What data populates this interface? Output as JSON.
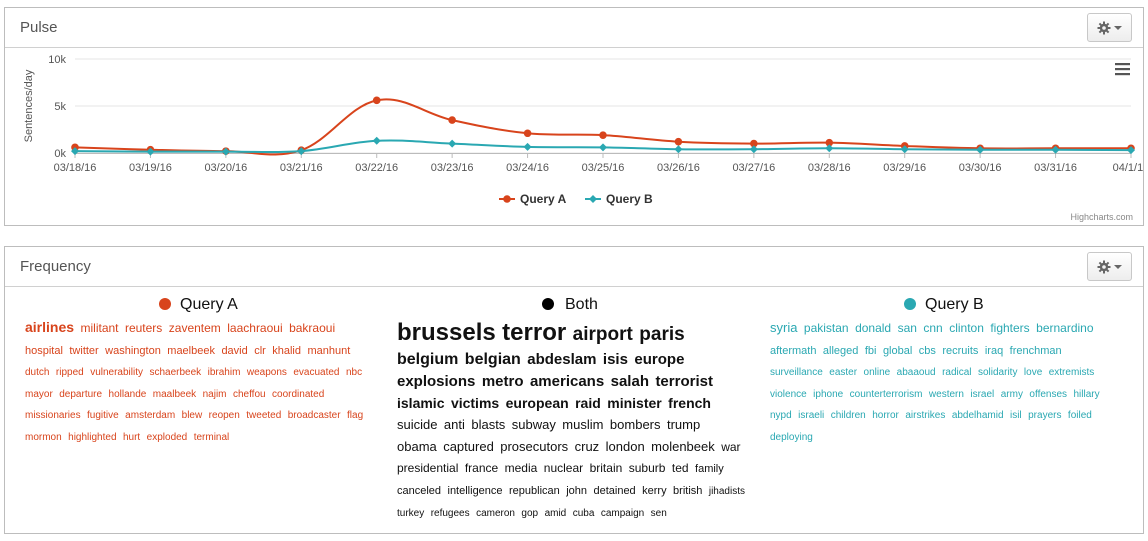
{
  "pulse": {
    "title": "Pulse",
    "credit": "Highcharts.com"
  },
  "frequency": {
    "title": "Frequency",
    "columns": [
      {
        "name": "Query A",
        "color": "#d8441c"
      },
      {
        "name": "Both",
        "color": "#000000"
      },
      {
        "name": "Query B",
        "color": "#2aa8b2"
      }
    ],
    "clouds": {
      "query_a": [
        {
          "t": "airlines",
          "s": 14
        },
        {
          "t": "militant",
          "s": 12
        },
        {
          "t": "reuters",
          "s": 12
        },
        {
          "t": "zaventem",
          "s": 12
        },
        {
          "t": "laachraoui",
          "s": 12
        },
        {
          "t": "bakraoui",
          "s": 12
        },
        {
          "t": "hospital",
          "s": 11
        },
        {
          "t": "twitter",
          "s": 11
        },
        {
          "t": "washington",
          "s": 11
        },
        {
          "t": "maelbeek",
          "s": 11
        },
        {
          "t": "david",
          "s": 11
        },
        {
          "t": "clr",
          "s": 11
        },
        {
          "t": "khalid",
          "s": 11
        },
        {
          "t": "manhunt",
          "s": 11
        },
        {
          "t": "dutch",
          "s": 10
        },
        {
          "t": "ripped",
          "s": 10
        },
        {
          "t": "vulnerability",
          "s": 10
        },
        {
          "t": "schaerbeek",
          "s": 10
        },
        {
          "t": "ibrahim",
          "s": 10
        },
        {
          "t": "weapons",
          "s": 10
        },
        {
          "t": "evacuated",
          "s": 10
        },
        {
          "t": "nbc",
          "s": 10
        },
        {
          "t": "mayor",
          "s": 10
        },
        {
          "t": "departure",
          "s": 10
        },
        {
          "t": "hollande",
          "s": 10
        },
        {
          "t": "maalbeek",
          "s": 10
        },
        {
          "t": "najim",
          "s": 10
        },
        {
          "t": "cheffou",
          "s": 10
        },
        {
          "t": "coordinated",
          "s": 10
        },
        {
          "t": "missionaries",
          "s": 10
        },
        {
          "t": "fugitive",
          "s": 10
        },
        {
          "t": "amsterdam",
          "s": 10
        },
        {
          "t": "blew",
          "s": 10
        },
        {
          "t": "reopen",
          "s": 10
        },
        {
          "t": "tweeted",
          "s": 10
        },
        {
          "t": "broadcaster",
          "s": 10
        },
        {
          "t": "flag",
          "s": 10
        },
        {
          "t": "mormon",
          "s": 10
        },
        {
          "t": "highlighted",
          "s": 10
        },
        {
          "t": "hurt",
          "s": 10
        },
        {
          "t": "exploded",
          "s": 10
        },
        {
          "t": "terminal",
          "s": 10
        }
      ],
      "both": [
        {
          "t": "brussels",
          "s": 24
        },
        {
          "t": "terror",
          "s": 24
        },
        {
          "t": "airport",
          "s": 19
        },
        {
          "t": "paris",
          "s": 19
        },
        {
          "t": "belgium",
          "s": 16
        },
        {
          "t": "belgian",
          "s": 16
        },
        {
          "t": "abdeslam",
          "s": 15
        },
        {
          "t": "isis",
          "s": 15
        },
        {
          "t": "europe",
          "s": 15
        },
        {
          "t": "explosions",
          "s": 15
        },
        {
          "t": "metro",
          "s": 15
        },
        {
          "t": "americans",
          "s": 15
        },
        {
          "t": "salah",
          "s": 15
        },
        {
          "t": "terrorist",
          "s": 15
        },
        {
          "t": "islamic",
          "s": 14
        },
        {
          "t": "victims",
          "s": 14
        },
        {
          "t": "european",
          "s": 14
        },
        {
          "t": "raid",
          "s": 14
        },
        {
          "t": "minister",
          "s": 14
        },
        {
          "t": "french",
          "s": 14
        },
        {
          "t": "suicide",
          "s": 13
        },
        {
          "t": "anti",
          "s": 13
        },
        {
          "t": "blasts",
          "s": 13
        },
        {
          "t": "subway",
          "s": 13
        },
        {
          "t": "muslim",
          "s": 13
        },
        {
          "t": "bombers",
          "s": 13
        },
        {
          "t": "trump",
          "s": 13
        },
        {
          "t": "obama",
          "s": 13
        },
        {
          "t": "captured",
          "s": 13
        },
        {
          "t": "prosecutors",
          "s": 13
        },
        {
          "t": "cruz",
          "s": 13
        },
        {
          "t": "london",
          "s": 13
        },
        {
          "t": "molenbeek",
          "s": 13
        },
        {
          "t": "war",
          "s": 12
        },
        {
          "t": "presidential",
          "s": 12
        },
        {
          "t": "france",
          "s": 12
        },
        {
          "t": "media",
          "s": 12
        },
        {
          "t": "nuclear",
          "s": 12
        },
        {
          "t": "britain",
          "s": 12
        },
        {
          "t": "suburb",
          "s": 12
        },
        {
          "t": "ted",
          "s": 12
        },
        {
          "t": "family",
          "s": 11
        },
        {
          "t": "canceled",
          "s": 11
        },
        {
          "t": "intelligence",
          "s": 11
        },
        {
          "t": "republican",
          "s": 11
        },
        {
          "t": "john",
          "s": 11
        },
        {
          "t": "detained",
          "s": 11
        },
        {
          "t": "kerry",
          "s": 11
        },
        {
          "t": "british",
          "s": 11
        },
        {
          "t": "jihadists",
          "s": 10
        },
        {
          "t": "turkey",
          "s": 10
        },
        {
          "t": "refugees",
          "s": 10
        },
        {
          "t": "cameron",
          "s": 10
        },
        {
          "t": "gop",
          "s": 10
        },
        {
          "t": "amid",
          "s": 10
        },
        {
          "t": "cuba",
          "s": 10
        },
        {
          "t": "campaign",
          "s": 10
        },
        {
          "t": "sen",
          "s": 10
        }
      ],
      "query_b": [
        {
          "t": "syria",
          "s": 13
        },
        {
          "t": "pakistan",
          "s": 12
        },
        {
          "t": "donald",
          "s": 12
        },
        {
          "t": "san",
          "s": 12
        },
        {
          "t": "cnn",
          "s": 12
        },
        {
          "t": "clinton",
          "s": 12
        },
        {
          "t": "fighters",
          "s": 12
        },
        {
          "t": "bernardino",
          "s": 12
        },
        {
          "t": "aftermath",
          "s": 11
        },
        {
          "t": "alleged",
          "s": 11
        },
        {
          "t": "fbi",
          "s": 11
        },
        {
          "t": "global",
          "s": 11
        },
        {
          "t": "cbs",
          "s": 11
        },
        {
          "t": "recruits",
          "s": 11
        },
        {
          "t": "iraq",
          "s": 11
        },
        {
          "t": "frenchman",
          "s": 11
        },
        {
          "t": "surveillance",
          "s": 10
        },
        {
          "t": "easter",
          "s": 10
        },
        {
          "t": "online",
          "s": 10
        },
        {
          "t": "abaaoud",
          "s": 10
        },
        {
          "t": "radical",
          "s": 10
        },
        {
          "t": "solidarity",
          "s": 10
        },
        {
          "t": "love",
          "s": 10
        },
        {
          "t": "extremists",
          "s": 10
        },
        {
          "t": "violence",
          "s": 10
        },
        {
          "t": "iphone",
          "s": 10
        },
        {
          "t": "counterterrorism",
          "s": 10
        },
        {
          "t": "western",
          "s": 10
        },
        {
          "t": "israel",
          "s": 10
        },
        {
          "t": "army",
          "s": 10
        },
        {
          "t": "offenses",
          "s": 10
        },
        {
          "t": "hillary",
          "s": 10
        },
        {
          "t": "nypd",
          "s": 10
        },
        {
          "t": "israeli",
          "s": 10
        },
        {
          "t": "children",
          "s": 10
        },
        {
          "t": "horror",
          "s": 10
        },
        {
          "t": "airstrikes",
          "s": 10
        },
        {
          "t": "abdelhamid",
          "s": 10
        },
        {
          "t": "isil",
          "s": 10
        },
        {
          "t": "prayers",
          "s": 10
        },
        {
          "t": "foiled",
          "s": 10
        },
        {
          "t": "deploying",
          "s": 10
        }
      ]
    }
  },
  "chart_data": {
    "type": "line",
    "x": [
      "03/18/16",
      "03/19/16",
      "03/20/16",
      "03/21/16",
      "03/22/16",
      "03/23/16",
      "03/24/16",
      "03/25/16",
      "03/26/16",
      "03/27/16",
      "03/28/16",
      "03/29/16",
      "03/30/16",
      "03/31/16",
      "04/1/16"
    ],
    "series": [
      {
        "name": "Query A",
        "color": "#d8441c",
        "values": [
          600,
          350,
          200,
          300,
          5600,
          3500,
          2100,
          1900,
          1200,
          1000,
          1100,
          750,
          500,
          500,
          500
        ]
      },
      {
        "name": "Query B",
        "color": "#2aa8b2",
        "values": [
          200,
          150,
          150,
          200,
          1300,
          1000,
          650,
          600,
          400,
          400,
          500,
          400,
          350,
          350,
          300
        ]
      }
    ],
    "ylabel": "Sentences/day",
    "ylim": [
      0,
      10000
    ],
    "yticks": [
      0,
      5000,
      10000
    ],
    "ytick_labels": [
      "0k",
      "5k",
      "10k"
    ],
    "grid": true,
    "legend": "bottom-center"
  }
}
